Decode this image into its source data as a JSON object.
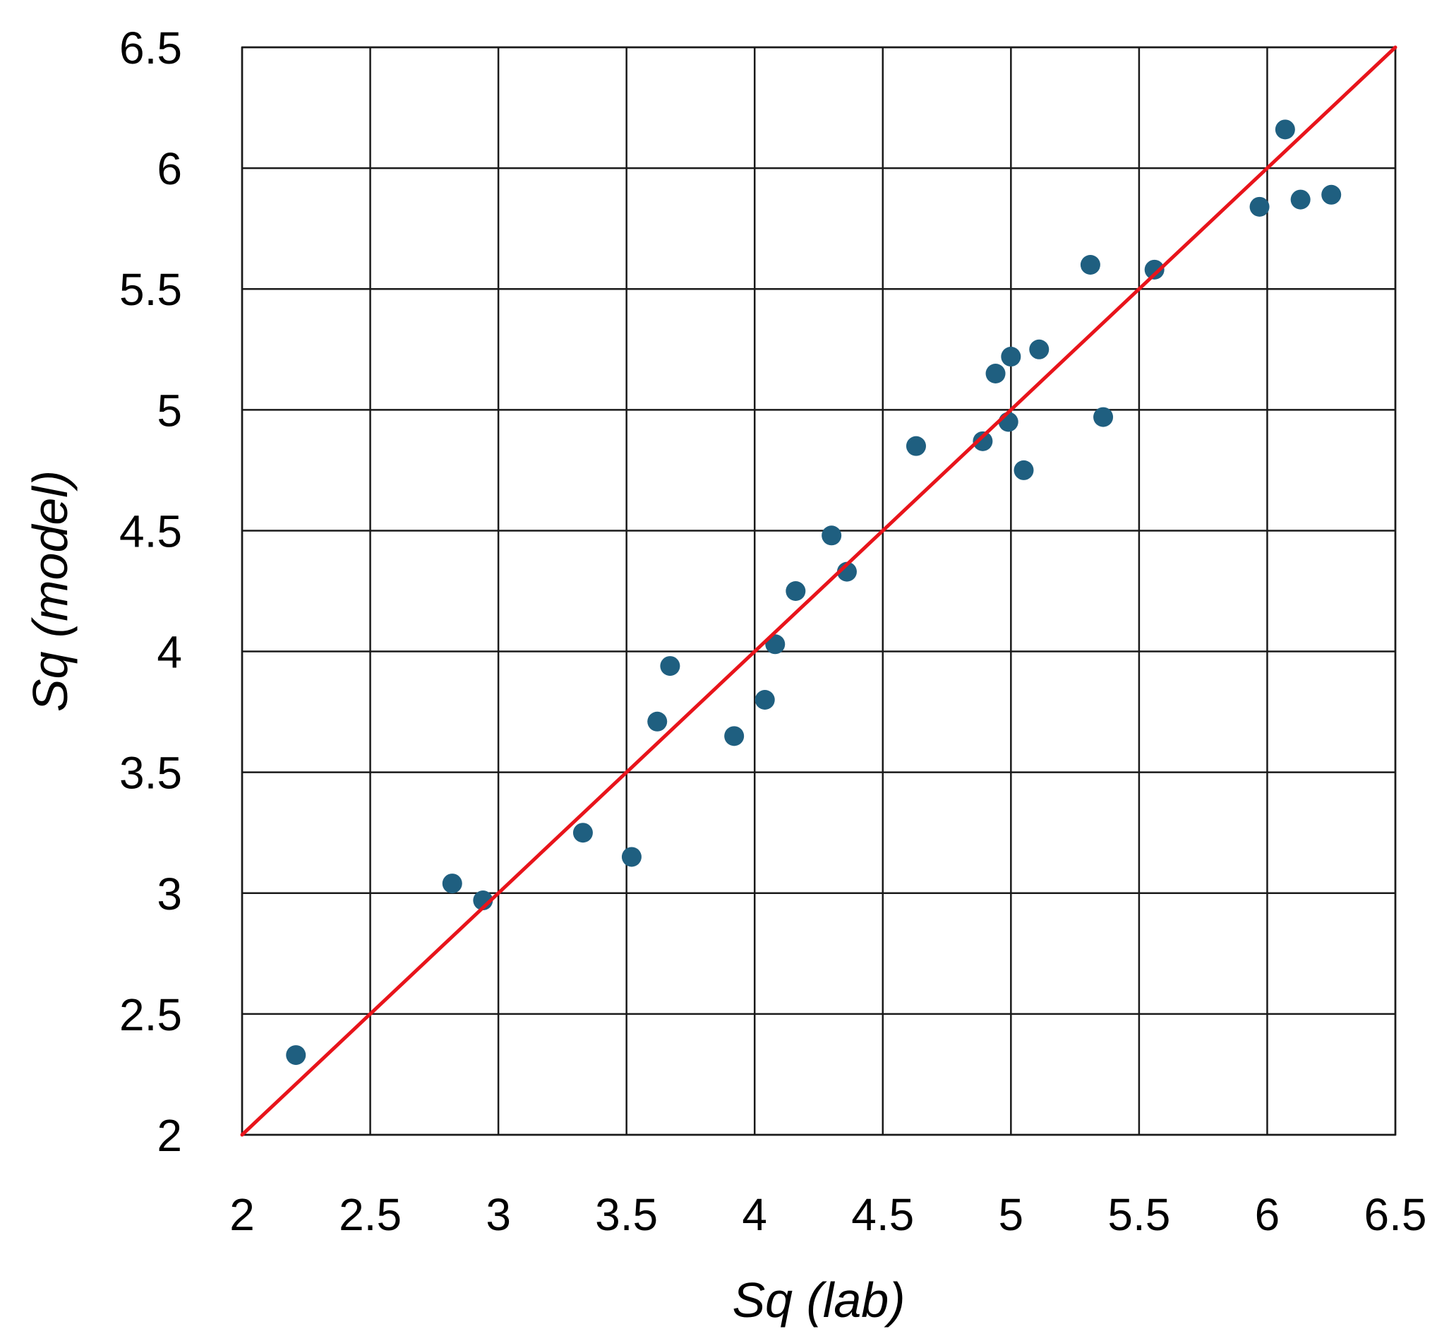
{
  "chart_data": {
    "type": "scatter",
    "xlabel": "Sq (lab)",
    "ylabel": "Sq (model)",
    "xlim": [
      2,
      6.5
    ],
    "ylim": [
      2,
      6.5
    ],
    "x_ticks": [
      2,
      2.5,
      3,
      3.5,
      4,
      4.5,
      5,
      5.5,
      6,
      6.5
    ],
    "y_ticks": [
      2,
      2.5,
      3,
      3.5,
      4,
      4.5,
      5,
      5.5,
      6,
      6.5
    ],
    "x_tick_labels": [
      "2",
      "2.5",
      "3",
      "3.5",
      "4",
      "4.5",
      "5",
      "5.5",
      "6",
      "6.5"
    ],
    "y_tick_labels": [
      "2",
      "2.5",
      "3",
      "3.5",
      "4",
      "4.5",
      "5",
      "5.5",
      "6",
      "6.5"
    ],
    "grid": true,
    "reference_line": {
      "from": [
        2,
        2
      ],
      "to": [
        6.5,
        6.5
      ],
      "color": "#e8141b"
    },
    "marker_color": "#1f5f80",
    "series": [
      {
        "points": [
          {
            "x": 2.21,
            "y": 2.33
          },
          {
            "x": 2.82,
            "y": 3.04
          },
          {
            "x": 2.94,
            "y": 2.97
          },
          {
            "x": 3.33,
            "y": 3.25
          },
          {
            "x": 3.52,
            "y": 3.15
          },
          {
            "x": 3.62,
            "y": 3.71
          },
          {
            "x": 3.67,
            "y": 3.94
          },
          {
            "x": 3.92,
            "y": 3.65
          },
          {
            "x": 4.04,
            "y": 3.8
          },
          {
            "x": 4.08,
            "y": 4.03
          },
          {
            "x": 4.16,
            "y": 4.25
          },
          {
            "x": 4.3,
            "y": 4.48
          },
          {
            "x": 4.36,
            "y": 4.33
          },
          {
            "x": 4.63,
            "y": 4.85
          },
          {
            "x": 4.89,
            "y": 4.87
          },
          {
            "x": 4.94,
            "y": 5.15
          },
          {
            "x": 4.99,
            "y": 4.95
          },
          {
            "x": 5.0,
            "y": 5.22
          },
          {
            "x": 5.05,
            "y": 4.75
          },
          {
            "x": 5.11,
            "y": 5.25
          },
          {
            "x": 5.31,
            "y": 5.6
          },
          {
            "x": 5.36,
            "y": 4.97
          },
          {
            "x": 5.56,
            "y": 5.58
          },
          {
            "x": 5.97,
            "y": 5.84
          },
          {
            "x": 6.07,
            "y": 6.16
          },
          {
            "x": 6.13,
            "y": 5.87
          },
          {
            "x": 6.25,
            "y": 5.89
          }
        ]
      }
    ]
  }
}
